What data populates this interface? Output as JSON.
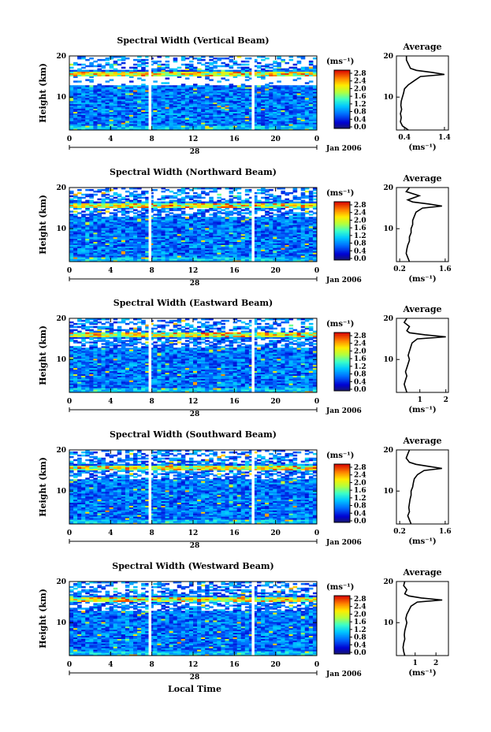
{
  "chart_data": [
    {
      "type": "heatmap",
      "title": "Spectral Width (Vertical Beam)",
      "ylabel": "Height (km)",
      "xlabel": "",
      "x_ticks": [
        "0",
        "4",
        "8",
        "12",
        "16",
        "20",
        "0"
      ],
      "y_ticks": [
        "20",
        "10"
      ],
      "xlim": [
        0,
        24
      ],
      "ylim": [
        2,
        20
      ],
      "day_label": "28",
      "date_label": "Jan 2006",
      "data_gaps_hours": [
        7.8,
        17.8
      ],
      "colorbar": {
        "unit": "(ms⁻¹)",
        "ticks": [
          "2.8",
          "2.4",
          "2.0",
          "1.6",
          "1.2",
          "0.8",
          "0.4",
          "0.0"
        ]
      },
      "profile": {
        "title": "Average",
        "x_ticks": [
          "0.4",
          "1.4"
        ],
        "xlim": [
          0.2,
          1.5
        ],
        "y_ticks": [
          "20",
          "10"
        ],
        "xunit": "(ms⁻¹)",
        "heights": [
          2,
          3,
          4,
          5,
          6,
          7,
          8,
          9,
          10,
          11,
          12,
          13,
          14,
          15,
          15.5,
          16,
          16.5,
          17,
          18,
          19,
          20
        ],
        "values": [
          0.5,
          0.35,
          0.3,
          0.32,
          0.3,
          0.33,
          0.31,
          0.32,
          0.35,
          0.38,
          0.4,
          0.5,
          0.65,
          0.8,
          1.4,
          1.1,
          0.7,
          0.55,
          0.5,
          0.45,
          0.45
        ]
      }
    },
    {
      "type": "heatmap",
      "title": "Spectral Width (Northward Beam)",
      "ylabel": "Height (km)",
      "xlabel": "",
      "x_ticks": [
        "0",
        "4",
        "8",
        "12",
        "16",
        "20",
        "0"
      ],
      "y_ticks": [
        "20",
        "10"
      ],
      "xlim": [
        0,
        24
      ],
      "ylim": [
        2,
        20
      ],
      "day_label": "28",
      "date_label": "Jan 2006",
      "data_gaps_hours": [
        7.8,
        17.8
      ],
      "colorbar": {
        "unit": "(ms⁻¹)",
        "ticks": [
          "2.8",
          "2.4",
          "2.0",
          "1.6",
          "1.2",
          "0.8",
          "0.4",
          "0.0"
        ]
      },
      "profile": {
        "title": "Average",
        "x_ticks": [
          "0.2",
          "1.6"
        ],
        "xlim": [
          0.1,
          1.7
        ],
        "y_ticks": [
          "20",
          "10"
        ],
        "xunit": "(ms⁻¹)",
        "heights": [
          2,
          3,
          4,
          5,
          6,
          7,
          8,
          9,
          10,
          11,
          12,
          13,
          14,
          15,
          15.5,
          16,
          16.5,
          17,
          18,
          19,
          20
        ],
        "values": [
          0.5,
          0.45,
          0.4,
          0.42,
          0.45,
          0.5,
          0.5,
          0.55,
          0.55,
          0.6,
          0.6,
          0.65,
          0.7,
          0.9,
          1.5,
          1.1,
          0.6,
          0.45,
          0.8,
          0.4,
          0.5
        ]
      }
    },
    {
      "type": "heatmap",
      "title": "Spectral Width (Eastward Beam)",
      "ylabel": "Height (km)",
      "xlabel": "",
      "x_ticks": [
        "0",
        "4",
        "8",
        "12",
        "16",
        "20",
        "0"
      ],
      "y_ticks": [
        "20",
        "10"
      ],
      "xlim": [
        0,
        24
      ],
      "ylim": [
        2,
        20
      ],
      "day_label": "28",
      "date_label": "Jan 2006",
      "data_gaps_hours": [
        7.8,
        17.8
      ],
      "colorbar": {
        "unit": "(ms⁻¹)",
        "ticks": [
          "2.8",
          "2.4",
          "2.0",
          "1.6",
          "1.2",
          "0.8",
          "0.4",
          "0.0"
        ]
      },
      "profile": {
        "title": "Average",
        "x_ticks": [
          "1",
          "2"
        ],
        "xlim": [
          0.1,
          2.1
        ],
        "y_ticks": [
          "20",
          "10"
        ],
        "xunit": "(ms⁻¹)",
        "heights": [
          2,
          3,
          4,
          5,
          6,
          7,
          8,
          9,
          10,
          11,
          12,
          13,
          14,
          15,
          15.5,
          16,
          16.5,
          17,
          18,
          19,
          20
        ],
        "values": [
          0.5,
          0.45,
          0.4,
          0.45,
          0.5,
          0.45,
          0.5,
          0.55,
          0.6,
          0.55,
          0.6,
          0.65,
          0.7,
          0.9,
          2.0,
          1.2,
          0.6,
          0.5,
          0.6,
          0.4,
          0.5
        ]
      }
    },
    {
      "type": "heatmap",
      "title": "Spectral Width (Southward Beam)",
      "ylabel": "Height (km)",
      "xlabel": "",
      "x_ticks": [
        "0",
        "4",
        "8",
        "12",
        "16",
        "20",
        "0"
      ],
      "y_ticks": [
        "20",
        "10"
      ],
      "xlim": [
        0,
        24
      ],
      "ylim": [
        2,
        20
      ],
      "day_label": "28",
      "date_label": "Jan 2006",
      "data_gaps_hours": [
        7.8,
        17.8
      ],
      "colorbar": {
        "unit": "(ms⁻¹)",
        "ticks": [
          "2.8",
          "2.4",
          "2.0",
          "1.6",
          "1.2",
          "0.8",
          "0.4",
          "0.0"
        ]
      },
      "profile": {
        "title": "Average",
        "x_ticks": [
          "0.2",
          "1.6"
        ],
        "xlim": [
          0.1,
          1.7
        ],
        "y_ticks": [
          "20",
          "10"
        ],
        "xunit": "(ms⁻¹)",
        "heights": [
          2,
          3,
          4,
          5,
          6,
          7,
          8,
          9,
          10,
          11,
          12,
          13,
          14,
          15,
          15.5,
          16,
          16.5,
          17,
          18,
          19,
          20
        ],
        "values": [
          0.55,
          0.5,
          0.45,
          0.5,
          0.48,
          0.5,
          0.52,
          0.55,
          0.55,
          0.6,
          0.62,
          0.65,
          0.75,
          0.95,
          1.5,
          1.1,
          0.7,
          0.5,
          0.4,
          0.45,
          0.5
        ]
      }
    },
    {
      "type": "heatmap",
      "title": "Spectral Width (Westward Beam)",
      "ylabel": "Height (km)",
      "xlabel": "Local Time",
      "x_ticks": [
        "0",
        "4",
        "8",
        "12",
        "16",
        "20",
        "0"
      ],
      "y_ticks": [
        "20",
        "10"
      ],
      "xlim": [
        0,
        24
      ],
      "ylim": [
        2,
        20
      ],
      "day_label": "28",
      "date_label": "Jan 2006",
      "data_gaps_hours": [
        7.8,
        17.8
      ],
      "colorbar": {
        "unit": "(ms⁻¹)",
        "ticks": [
          "2.8",
          "2.4",
          "2.0",
          "1.6",
          "1.2",
          "0.8",
          "0.4",
          "0.0"
        ]
      },
      "profile": {
        "title": "Average",
        "x_ticks": [
          "1",
          "2"
        ],
        "xlim": [
          0.1,
          2.6
        ],
        "y_ticks": [
          "20",
          "10"
        ],
        "xunit": "(ms⁻¹)",
        "heights": [
          2,
          3,
          4,
          5,
          6,
          7,
          8,
          9,
          10,
          11,
          12,
          13,
          14,
          15,
          15.5,
          16,
          16.5,
          17,
          18,
          19,
          20
        ],
        "values": [
          0.5,
          0.45,
          0.42,
          0.45,
          0.5,
          0.48,
          0.5,
          0.55,
          0.6,
          0.55,
          0.6,
          0.7,
          0.8,
          1.1,
          2.3,
          1.3,
          0.7,
          0.5,
          0.6,
          0.45,
          0.5
        ]
      }
    }
  ]
}
